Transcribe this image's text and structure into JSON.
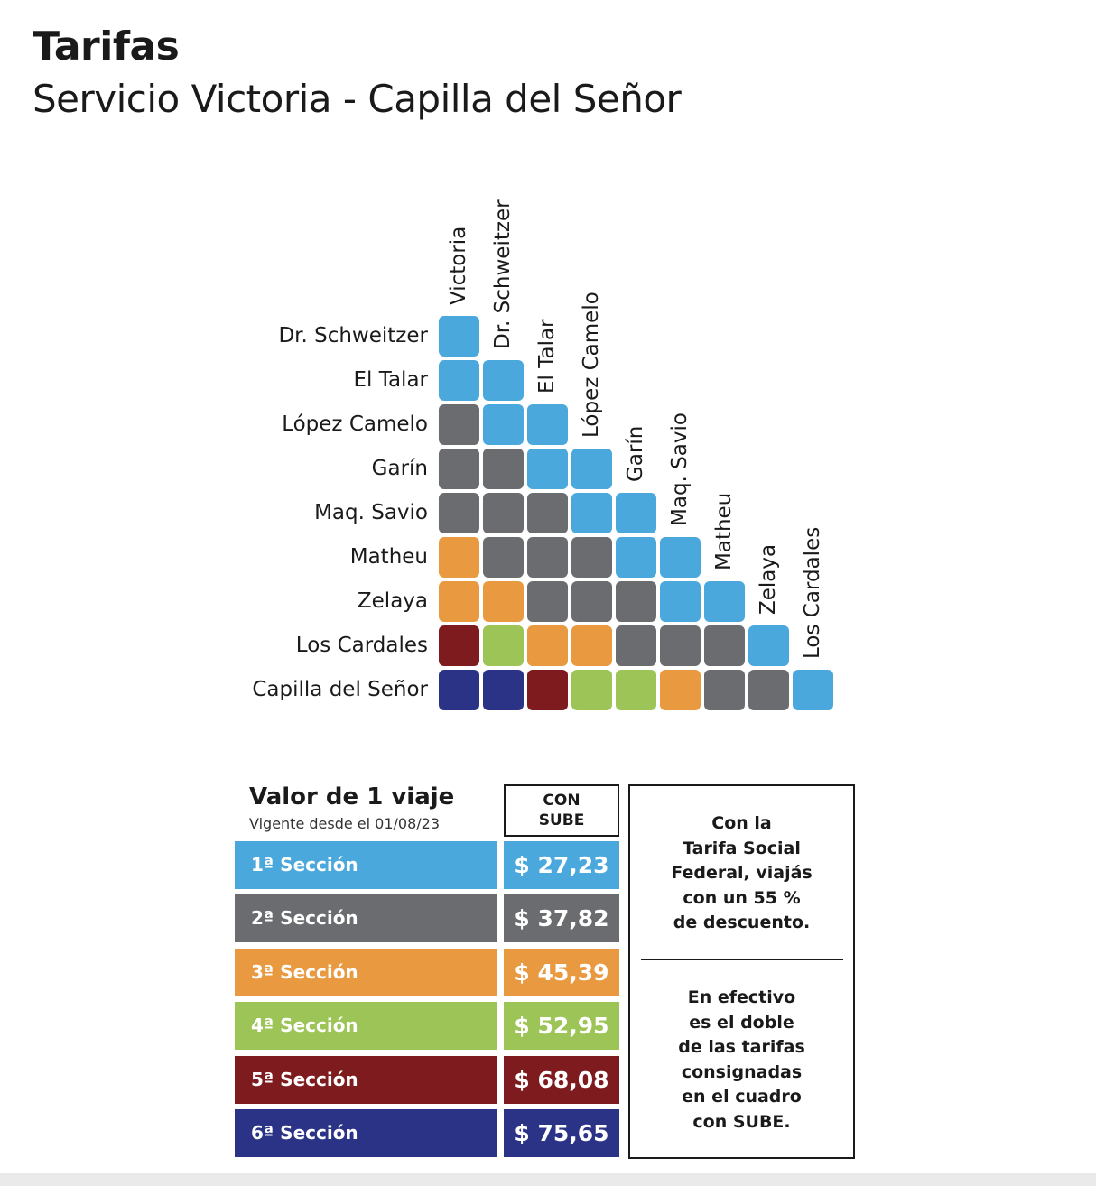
{
  "header": {
    "title": "Tarifas",
    "subtitle": "Servicio Victoria - Capilla del Señor"
  },
  "matrix": {
    "columns": [
      "Victoria",
      "Dr. Schweitzer",
      "El Talar",
      "López Camelo",
      "Garín",
      "Maq. Savio",
      "Matheu",
      "Zelaya",
      "Los Cardales"
    ],
    "rows": [
      {
        "label": "Dr. Schweitzer",
        "sections": [
          1
        ]
      },
      {
        "label": "El Talar",
        "sections": [
          1,
          1
        ]
      },
      {
        "label": "López Camelo",
        "sections": [
          2,
          1,
          1
        ]
      },
      {
        "label": "Garín",
        "sections": [
          2,
          2,
          1,
          1
        ]
      },
      {
        "label": "Maq. Savio",
        "sections": [
          2,
          2,
          2,
          1,
          1
        ]
      },
      {
        "label": "Matheu",
        "sections": [
          3,
          2,
          2,
          2,
          1,
          1
        ]
      },
      {
        "label": "Zelaya",
        "sections": [
          3,
          3,
          2,
          2,
          2,
          1,
          1
        ]
      },
      {
        "label": "Los Cardales",
        "sections": [
          5,
          4,
          3,
          3,
          2,
          2,
          2,
          1
        ]
      },
      {
        "label": "Capilla del Señor",
        "sections": [
          6,
          6,
          5,
          4,
          4,
          3,
          2,
          2,
          1
        ]
      }
    ]
  },
  "fares": {
    "title": "Valor de 1 viaje",
    "valid_from": "Vigente desde el 01/08/23",
    "column_header_line1": "CON",
    "column_header_line2": "SUBE",
    "sections": [
      {
        "label": "1ª Sección",
        "price": "$ 27,23",
        "color": "#4aa8dc"
      },
      {
        "label": "2ª Sección",
        "price": "$ 37,82",
        "color": "#6b6c70"
      },
      {
        "label": "3ª Sección",
        "price": "$ 45,39",
        "color": "#e99a40"
      },
      {
        "label": "4ª Sección",
        "price": "$ 52,95",
        "color": "#9cc457"
      },
      {
        "label": "5ª Sección",
        "price": "$ 68,08",
        "color": "#7d1b1f"
      },
      {
        "label": "6ª Sección",
        "price": "$ 75,65",
        "color": "#2b3386"
      }
    ]
  },
  "info": {
    "social_fare": "Con la\nTarifa Social\nFederal, viajás\ncon un 55 %\nde descuento.",
    "cash_note": "En efectivo\nes el doble\nde las tarifas\nconsignadas\nen el cuadro\ncon SUBE."
  }
}
